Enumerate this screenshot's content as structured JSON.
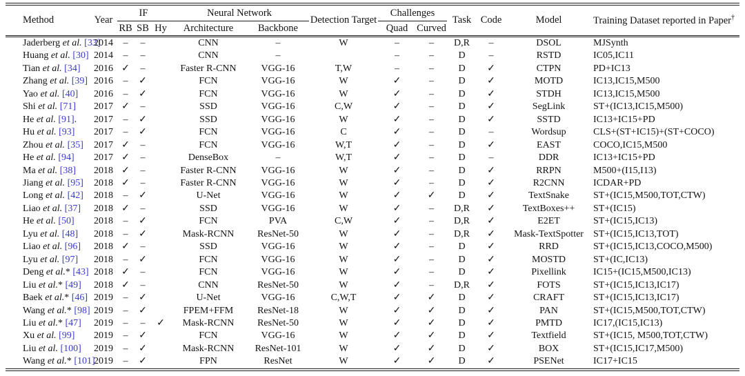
{
  "colors": {
    "reference_link": "#3a3ace",
    "text": "#121212",
    "background": "#ffffff"
  },
  "table": {
    "header": {
      "method": "Method",
      "year": "Year",
      "if_group": "IF",
      "rb": "RB",
      "sb": "SB",
      "hy": "Hy",
      "nn_group": "Neural Network",
      "architecture": "Architecture",
      "backbone": "Backbone",
      "detection_target": "Detection Target",
      "challenges_group": "Challenges",
      "quad": "Quad",
      "curved": "Curved",
      "task": "Task",
      "code": "Code",
      "model": "Model",
      "training_dataset": "Training Dataset reported in Paper",
      "dagger": "†"
    },
    "rows": [
      {
        "author": "Jaderberg",
        "etal": "et al.",
        "star": "",
        "ref": "[33]",
        "post": "",
        "year": "2014",
        "rb": "–",
        "sb": "–",
        "hy": "",
        "arch": "CNN",
        "backbone": "–",
        "target": "W",
        "quad": "–",
        "curved": "–",
        "task": "D,R",
        "code": "–",
        "model": "DSOL",
        "dataset": "MJSynth"
      },
      {
        "author": "Huang",
        "etal": "et al.",
        "star": "",
        "ref": "[30]",
        "post": "",
        "year": "2014",
        "rb": "–",
        "sb": "–",
        "hy": "",
        "arch": "CNN",
        "backbone": "–",
        "target": "",
        "quad": "–",
        "curved": "–",
        "task": "D",
        "code": "–",
        "model": "RSTD",
        "dataset": "IC05,IC11"
      },
      {
        "author": "Tian",
        "etal": "et al.",
        "star": "",
        "ref": "[34]",
        "post": "",
        "year": "2016",
        "rb": "✓",
        "sb": "–",
        "hy": "",
        "arch": "Faster R-CNN",
        "backbone": "VGG-16",
        "target": "T,W",
        "quad": "–",
        "curved": "–",
        "task": "D",
        "code": "✓",
        "model": "CTPN",
        "dataset": "PD+IC13"
      },
      {
        "author": "Zhang",
        "etal": "et al.",
        "star": "",
        "ref": "[39]",
        "post": "",
        "year": "2016",
        "rb": "–",
        "sb": "✓",
        "hy": "",
        "arch": "FCN",
        "backbone": "VGG-16",
        "target": "W",
        "quad": "✓",
        "curved": "–",
        "task": "D",
        "code": "✓",
        "model": "MOTD",
        "dataset": "IC13,IC15,M500"
      },
      {
        "author": "Yao",
        "etal": "et al.",
        "star": "",
        "ref": "[40]",
        "post": "",
        "year": "2016",
        "rb": "–",
        "sb": "✓",
        "hy": "",
        "arch": "FCN",
        "backbone": "VGG-16",
        "target": "W",
        "quad": "✓",
        "curved": "–",
        "task": "D",
        "code": "✓",
        "model": "STDH",
        "dataset": "IC13,IC15,M500"
      },
      {
        "author": "Shi",
        "etal": "et al.",
        "star": "",
        "ref": "[71]",
        "post": "",
        "year": "2017",
        "rb": "✓",
        "sb": "–",
        "hy": "",
        "arch": "SSD",
        "backbone": "VGG-16",
        "target": "C,W",
        "quad": "✓",
        "curved": "–",
        "task": "D",
        "code": "✓",
        "model": "SegLink",
        "dataset": "ST+(IC13,IC15,M500)"
      },
      {
        "author": "He",
        "etal": "et al.",
        "star": "",
        "ref": "[91]",
        "post": ".",
        "year": "2017",
        "rb": "–",
        "sb": "✓",
        "hy": "",
        "arch": "SSD",
        "backbone": "VGG-16",
        "target": "W",
        "quad": "✓",
        "curved": "–",
        "task": "D",
        "code": "✓",
        "model": "SSTD",
        "dataset": "IC13+IC15+PD"
      },
      {
        "author": "Hu",
        "etal": "et al.",
        "star": "",
        "ref": "[93]",
        "post": "",
        "year": "2017",
        "rb": "–",
        "sb": "✓",
        "hy": "",
        "arch": "FCN",
        "backbone": "VGG-16",
        "target": "C",
        "quad": "✓",
        "curved": "–",
        "task": "D",
        "code": "–",
        "model": "Wordsup",
        "dataset": "CLS+(ST+IC15)+(ST+COCO)"
      },
      {
        "author": "Zhou",
        "etal": "et al.",
        "star": "",
        "ref": "[35]",
        "post": "",
        "year": "2017",
        "rb": "✓",
        "sb": "–",
        "hy": "",
        "arch": "FCN",
        "backbone": "VGG-16",
        "target": "W,T",
        "quad": "✓",
        "curved": "–",
        "task": "D",
        "code": "✓",
        "model": "EAST",
        "dataset": "COCO,IC15,M500"
      },
      {
        "author": "He",
        "etal": "et al.",
        "star": "",
        "ref": "[94]",
        "post": "",
        "year": "2017",
        "rb": "✓",
        "sb": "–",
        "hy": "",
        "arch": "DenseBox",
        "backbone": "–",
        "target": "W,T",
        "quad": "✓",
        "curved": "–",
        "task": "D",
        "code": "–",
        "model": "DDR",
        "dataset": "IC13+IC15+PD"
      },
      {
        "author": "Ma",
        "etal": "et al.",
        "star": "",
        "ref": "[38]",
        "post": "",
        "year": "2018",
        "rb": "✓",
        "sb": "–",
        "hy": "",
        "arch": "Faster R-CNN",
        "backbone": "VGG-16",
        "target": "W",
        "quad": "✓",
        "curved": "–",
        "task": "D",
        "code": "✓",
        "model": "RRPN",
        "dataset": "M500+(I15,I13)"
      },
      {
        "author": "Jiang",
        "etal": "et al.",
        "star": "",
        "ref": "[95]",
        "post": "",
        "year": "2018",
        "rb": "✓",
        "sb": "–",
        "hy": "",
        "arch": "Faster R-CNN",
        "backbone": "VGG-16",
        "target": "W",
        "quad": "✓",
        "curved": "–",
        "task": "D",
        "code": "✓",
        "model": "R2CNN",
        "dataset": "ICDAR+PD"
      },
      {
        "author": "Long",
        "etal": "et al.",
        "star": "",
        "ref": "[42]",
        "post": "",
        "year": "2018",
        "rb": "–",
        "sb": "✓",
        "hy": "",
        "arch": "U-Net",
        "backbone": "VGG-16",
        "target": "W",
        "quad": "✓",
        "curved": "✓",
        "task": "D",
        "code": "✓",
        "model": "TextSnake",
        "dataset": "ST+(IC15,M500,TOT,CTW)"
      },
      {
        "author": "Liao",
        "etal": "et al.",
        "star": "",
        "ref": "[37]",
        "post": "",
        "year": "2018",
        "rb": "✓",
        "sb": "–",
        "hy": "",
        "arch": "SSD",
        "backbone": "VGG-16",
        "target": "W",
        "quad": "✓",
        "curved": "–",
        "task": "D,R",
        "code": "✓",
        "model": "TextBoxes++",
        "dataset": "ST+(IC15)"
      },
      {
        "author": "He",
        "etal": "et al.",
        "star": "",
        "ref": "[50]",
        "post": "",
        "year": "2018",
        "rb": "–",
        "sb": "✓",
        "hy": "",
        "arch": "FCN",
        "backbone": "PVA",
        "target": "C,W",
        "quad": "✓",
        "curved": "–",
        "task": "D,R",
        "code": "✓",
        "model": "E2ET",
        "dataset": "ST+(IC15,IC13)"
      },
      {
        "author": "Lyu",
        "etal": "et al.",
        "star": "",
        "ref": "[48]",
        "post": "",
        "year": "2018",
        "rb": "–",
        "sb": "✓",
        "hy": "",
        "arch": "Mask-RCNN",
        "backbone": "ResNet-50",
        "target": "W",
        "quad": "✓",
        "curved": "–",
        "task": "D,R",
        "code": "✓",
        "model": "Mask-TextSpotter",
        "dataset": "ST+(IC15,IC13,TOT)"
      },
      {
        "author": "Liao",
        "etal": "et al.",
        "star": "",
        "ref": "[96]",
        "post": "",
        "year": "2018",
        "rb": "✓",
        "sb": "–",
        "hy": "",
        "arch": "SSD",
        "backbone": "VGG-16",
        "target": "W",
        "quad": "✓",
        "curved": "–",
        "task": "D",
        "code": "✓",
        "model": "RRD",
        "dataset": "ST+(IC15,IC13,COCO,M500)"
      },
      {
        "author": "Lyu",
        "etal": "et al.",
        "star": "",
        "ref": "[97]",
        "post": "",
        "year": "2018",
        "rb": "–",
        "sb": "✓",
        "hy": "",
        "arch": "FCN",
        "backbone": "VGG-16",
        "target": "W",
        "quad": "✓",
        "curved": "–",
        "task": "D",
        "code": "✓",
        "model": "MOSTD",
        "dataset": "ST+(IC,IC13)"
      },
      {
        "author": "Deng",
        "etal": "et al.",
        "star": "*",
        "ref": "[43]",
        "post": "",
        "year": "2018",
        "rb": "✓",
        "sb": "–",
        "hy": "",
        "arch": "FCN",
        "backbone": "VGG-16",
        "target": "W",
        "quad": "✓",
        "curved": "–",
        "task": "D",
        "code": "✓",
        "model": "Pixellink",
        "dataset": "IC15+(IC15,M500,IC13)"
      },
      {
        "author": "Liu",
        "etal": "et al.",
        "star": "*",
        "ref": "[49]",
        "post": "",
        "year": "2018",
        "rb": "✓",
        "sb": "–",
        "hy": "",
        "arch": "CNN",
        "backbone": "ResNet-50",
        "target": "W",
        "quad": "✓",
        "curved": "–",
        "task": "D,R",
        "code": "✓",
        "model": "FOTS",
        "dataset": "ST+(IC15,IC13,IC17)"
      },
      {
        "author": "Baek",
        "etal": "et al.",
        "star": "*",
        "ref": "[46]",
        "post": "",
        "year": "2019",
        "rb": "–",
        "sb": "✓",
        "hy": "",
        "arch": "U-Net",
        "backbone": "VGG-16",
        "target": "C,W,T",
        "quad": "✓",
        "curved": "✓",
        "task": "D",
        "code": "✓",
        "model": "CRAFT",
        "dataset": "ST+(IC15,IC13,IC17)"
      },
      {
        "author": "Wang",
        "etal": "et al.",
        "star": "*",
        "ref": "[98]",
        "post": "",
        "year": "2019",
        "rb": "–",
        "sb": "✓",
        "hy": "",
        "arch": "FPEM+FFM",
        "backbone": "ResNet-18",
        "target": "W",
        "quad": "✓",
        "curved": "✓",
        "task": "D",
        "code": "✓",
        "model": "PAN",
        "dataset": "ST+(IC15,M500,TOT,CTW)"
      },
      {
        "author": "Liu",
        "etal": "et al.",
        "star": "*",
        "ref": "[47]",
        "post": "",
        "year": "2019",
        "rb": "–",
        "sb": "–",
        "hy": "✓",
        "arch": "Mask-RCNN",
        "backbone": "ResNet-50",
        "target": "W",
        "quad": "✓",
        "curved": "✓",
        "task": "D",
        "code": "✓",
        "model": "PMTD",
        "dataset": "IC17,(IC15,IC13)"
      },
      {
        "author": "Xu",
        "etal": "et al.",
        "star": "",
        "ref": "[99]",
        "post": "",
        "year": "2019",
        "rb": "–",
        "sb": "✓",
        "hy": "",
        "arch": "FCN",
        "backbone": "VGG-16",
        "target": "W",
        "quad": "✓",
        "curved": "✓",
        "task": "D",
        "code": "✓",
        "model": "Textfield",
        "dataset": "ST+(IC15, M500,TOT,CTW)"
      },
      {
        "author": "Liu",
        "etal": "et al.",
        "star": "",
        "ref": "[100]",
        "post": "",
        "year": "2019",
        "rb": "–",
        "sb": "✓",
        "hy": "",
        "arch": "Mask-RCNN",
        "backbone": "ResNet-101",
        "target": "W",
        "quad": "✓",
        "curved": "✓",
        "task": "D",
        "code": "✓",
        "model": "BOX",
        "dataset": "ST+(IC15,IC17,M500)"
      },
      {
        "author": "Wang",
        "etal": "et al.",
        "star": "* ",
        "ref": "[101]",
        "post": "",
        "year": "2019",
        "rb": "–",
        "sb": "✓",
        "hy": "",
        "arch": "FPN",
        "backbone": "ResNet",
        "target": "W",
        "quad": "✓",
        "curved": "✓",
        "task": "D",
        "code": "✓",
        "model": "PSENet",
        "dataset": "IC17+IC15"
      }
    ]
  }
}
